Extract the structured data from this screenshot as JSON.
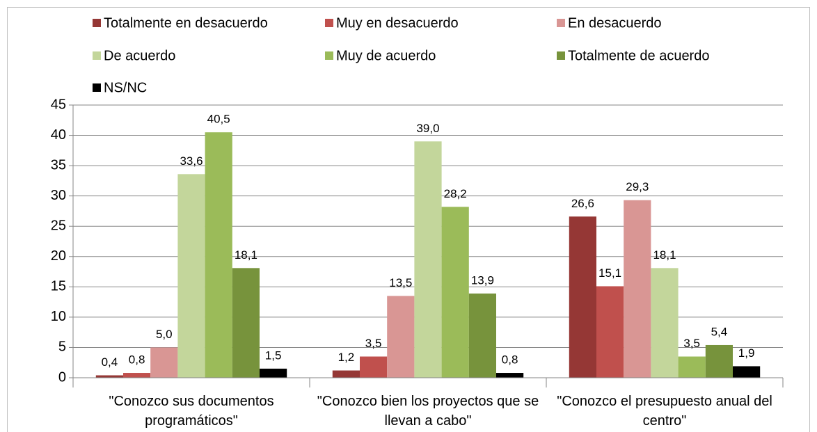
{
  "chart_data": {
    "type": "bar",
    "categories": [
      "\"Conozco sus documentos programáticos\"",
      "\"Conozco bien los proyectos que se llevan a cabo\"",
      "\"Conozco el presupuesto anual del centro\""
    ],
    "series": [
      {
        "name": "Totalmente en desacuerdo",
        "color": "#953735",
        "values": [
          0.4,
          1.2,
          26.6
        ],
        "value_labels": [
          "0,4",
          "1,2",
          "26,6"
        ]
      },
      {
        "name": "Muy en desacuerdo",
        "color": "#c0504d",
        "values": [
          0.8,
          3.5,
          15.1
        ],
        "value_labels": [
          "0,8",
          "3,5",
          "15,1"
        ]
      },
      {
        "name": "En desacuerdo",
        "color": "#d99694",
        "values": [
          5.0,
          13.5,
          29.3
        ],
        "value_labels": [
          "5,0",
          "13,5",
          "29,3"
        ]
      },
      {
        "name": "De acuerdo",
        "color": "#c3d69b",
        "values": [
          33.6,
          39.0,
          18.1
        ],
        "value_labels": [
          "33,6",
          "39,0",
          "18,1"
        ]
      },
      {
        "name": "Muy de acuerdo",
        "color": "#9bbb59",
        "values": [
          40.5,
          28.2,
          3.5
        ],
        "value_labels": [
          "40,5",
          "28,2",
          "3,5"
        ]
      },
      {
        "name": "Totalmente de acuerdo",
        "color": "#77933c",
        "values": [
          18.1,
          13.9,
          5.4
        ],
        "value_labels": [
          "18,1",
          "13,9",
          "5,4"
        ]
      },
      {
        "name": "NS/NC",
        "color": "#000000",
        "values": [
          1.5,
          0.8,
          1.9
        ],
        "value_labels": [
          "1,5",
          "0,8",
          "1,9"
        ]
      }
    ],
    "ylim": [
      0,
      45
    ],
    "yticks": [
      0,
      5,
      10,
      15,
      20,
      25,
      30,
      35,
      40,
      45
    ],
    "grid": true,
    "legend": "top"
  }
}
